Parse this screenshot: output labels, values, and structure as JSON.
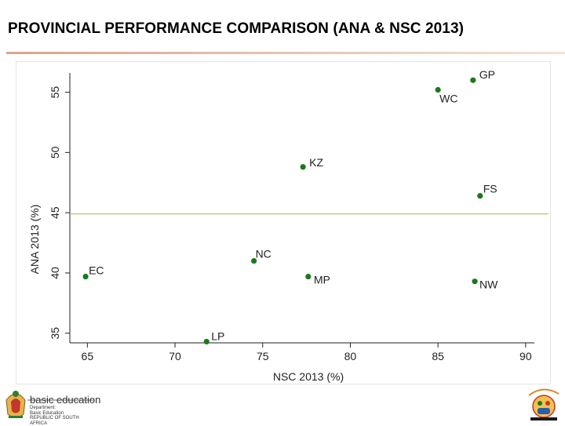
{
  "header": {
    "title": "PROVINCIAL PERFORMANCE COMPARISON (ANA & NSC 2013)"
  },
  "footer": {
    "brand_name": "basic education",
    "dept_lines": [
      "Department:",
      "Basic Education",
      "REPUBLIC OF SOUTH AFRICA"
    ]
  },
  "colors": {
    "marker": "#1a7a1a",
    "reference_line": "#b5b870",
    "title_rule_start": "#d9a58a",
    "title_rule_end": "#f3e2d8",
    "brand_accent": "#cc2222"
  },
  "chart_data": {
    "type": "scatter",
    "title": "",
    "xlabel": "NSC 2013 (%)",
    "ylabel": "ANA 2013 (%)",
    "xlim": [
      64,
      90.5
    ],
    "ylim": [
      34.2,
      56.6
    ],
    "xticks": [
      65,
      70,
      75,
      80,
      85,
      90
    ],
    "yticks": [
      35,
      40,
      45,
      50,
      55
    ],
    "reference_line_y": 44.9,
    "grid": false,
    "points": [
      {
        "label": "GP",
        "x": 87.0,
        "y": 56.0
      },
      {
        "label": "WC",
        "x": 85.0,
        "y": 55.2
      },
      {
        "label": "KZ",
        "x": 77.3,
        "y": 48.8
      },
      {
        "label": "FS",
        "x": 87.4,
        "y": 46.4
      },
      {
        "label": "NC",
        "x": 74.5,
        "y": 41.0
      },
      {
        "label": "EC",
        "x": 64.9,
        "y": 39.7
      },
      {
        "label": "MP",
        "x": 77.6,
        "y": 39.7
      },
      {
        "label": "NW",
        "x": 87.1,
        "y": 39.3
      },
      {
        "label": "LP",
        "x": 71.8,
        "y": 34.3
      }
    ]
  }
}
